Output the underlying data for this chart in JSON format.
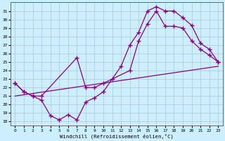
{
  "xlabel": "Windchill (Refroidissement éolien,°C)",
  "bg_color": "#cceeff",
  "grid_color": "#aacccc",
  "line_color": "#880088",
  "xlim": [
    -0.5,
    23.5
  ],
  "ylim": [
    17.5,
    32.0
  ],
  "xticks": [
    0,
    1,
    2,
    3,
    4,
    5,
    6,
    7,
    8,
    9,
    10,
    11,
    12,
    13,
    14,
    15,
    16,
    17,
    18,
    19,
    20,
    21,
    22,
    23
  ],
  "yticks": [
    18,
    19,
    20,
    21,
    22,
    23,
    24,
    25,
    26,
    27,
    28,
    29,
    30,
    31
  ],
  "line1_x": [
    0,
    1,
    2,
    3,
    4,
    5,
    6,
    7,
    8,
    9,
    10,
    11,
    12,
    13,
    14,
    15,
    16,
    17,
    18,
    19,
    20,
    21,
    22,
    23
  ],
  "line1_y": [
    22.5,
    21.5,
    21.0,
    20.5,
    18.7,
    18.2,
    18.8,
    18.2,
    20.3,
    20.8,
    21.5,
    23.0,
    24.5,
    27.0,
    28.5,
    31.0,
    31.5,
    31.0,
    31.0,
    30.2,
    29.3,
    27.2,
    26.5,
    25.0
  ],
  "line2_x": [
    0,
    1,
    2,
    3,
    7,
    8,
    9,
    10,
    13,
    14,
    15,
    16,
    17,
    18,
    19,
    20,
    21,
    22,
    23
  ],
  "line2_y": [
    22.5,
    21.5,
    21.0,
    21.0,
    25.5,
    22.0,
    22.0,
    22.5,
    24.0,
    27.5,
    29.5,
    31.0,
    29.2,
    29.2,
    29.0,
    27.5,
    26.5,
    25.8,
    25.0
  ],
  "line3_x": [
    0,
    23
  ],
  "line3_y": [
    21.0,
    24.5
  ]
}
